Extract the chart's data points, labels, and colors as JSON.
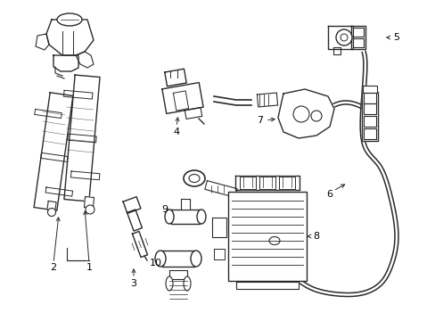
{
  "bg_color": "#ffffff",
  "line_color": "#2a2a2a",
  "label_color": "#000000",
  "label_fontsize": 8.0,
  "figsize": [
    4.89,
    3.6
  ],
  "dpi": 100
}
